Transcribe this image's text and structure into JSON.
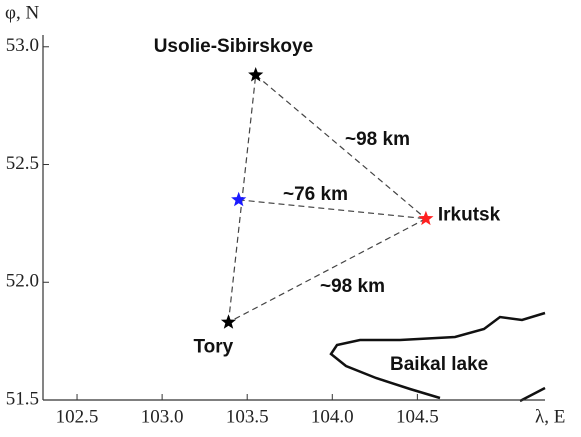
{
  "chart_data": {
    "type": "scatter",
    "xlabel": "λ, E",
    "ylabel": "φ, N",
    "xlim": [
      102.3,
      105.25
    ],
    "ylim": [
      51.5,
      53.05
    ],
    "xticks": [
      102.5,
      {
        "value": 103.0,
        "label": "103.0"
      },
      103.5,
      {
        "value": 104.0,
        "label": "104.0"
      },
      104.5
    ],
    "yticks": [
      {
        "value": 51.5,
        "label": "51.5"
      },
      {
        "value": 52.0,
        "label": "52.0"
      },
      {
        "value": 52.5,
        "label": "52.5"
      },
      {
        "value": 53.0,
        "label": "53.0"
      }
    ],
    "points": [
      {
        "label": "Usolie-Sibirskoye",
        "x": 103.55,
        "y": 52.88,
        "color": "#000000"
      },
      {
        "x": 103.45,
        "y": 52.35,
        "color": "#1a1aff"
      },
      {
        "label": "Irkutsk",
        "x": 104.55,
        "y": 52.27,
        "color": "#ff2020"
      },
      {
        "label": "Tory",
        "x": 103.39,
        "y": 51.83,
        "color": "#000000"
      }
    ],
    "annotations": [
      "~98 km",
      "~76 km",
      "~98 km",
      "Baikal lake"
    ]
  }
}
